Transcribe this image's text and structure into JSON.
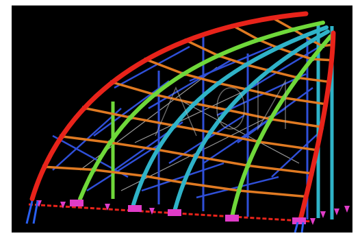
{
  "scene": {
    "background": "#000000",
    "palette": {
      "main_arch_red": "#e8231a",
      "arch_green": "#6fd83a",
      "arch_cyan": "#2fb3c8",
      "purlin_orange": "#e07a22",
      "bracing_blue": "#2f4fd8",
      "support_magenta": "#e03cc8",
      "support_blue": "#2a5ff0",
      "cable_grey": "#9a9a9a",
      "joint_grey": "#8c8c8c",
      "watermark": "#b8b8b8"
    },
    "icons": {
      "base_plate": "magenta-box",
      "pin_support": "magenta-pin"
    }
  }
}
